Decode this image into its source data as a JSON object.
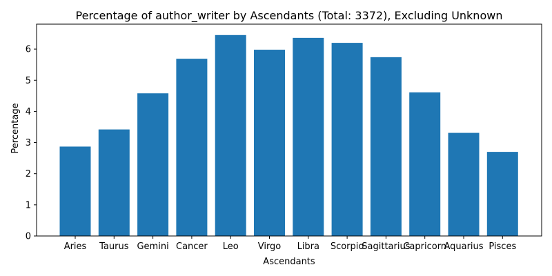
{
  "chart_data": {
    "type": "bar",
    "title": "Percentage of author_writer by Ascendants (Total: 3372), Excluding Unknown",
    "xlabel": "Ascendants",
    "ylabel": "Percentage",
    "categories": [
      "Aries",
      "Taurus",
      "Gemini",
      "Cancer",
      "Leo",
      "Virgo",
      "Libra",
      "Scorpio",
      "Sagittarius",
      "Capricorn",
      "Aquarius",
      "Pisces"
    ],
    "values": [
      2.87,
      3.42,
      4.58,
      5.69,
      6.45,
      5.98,
      6.36,
      6.2,
      5.74,
      4.61,
      3.31,
      2.7
    ],
    "ylim": [
      0,
      6.8
    ],
    "yticks": [
      0,
      1,
      2,
      3,
      4,
      5,
      6
    ],
    "bar_color": "#1f77b4",
    "grid": false,
    "legend": "none"
  }
}
